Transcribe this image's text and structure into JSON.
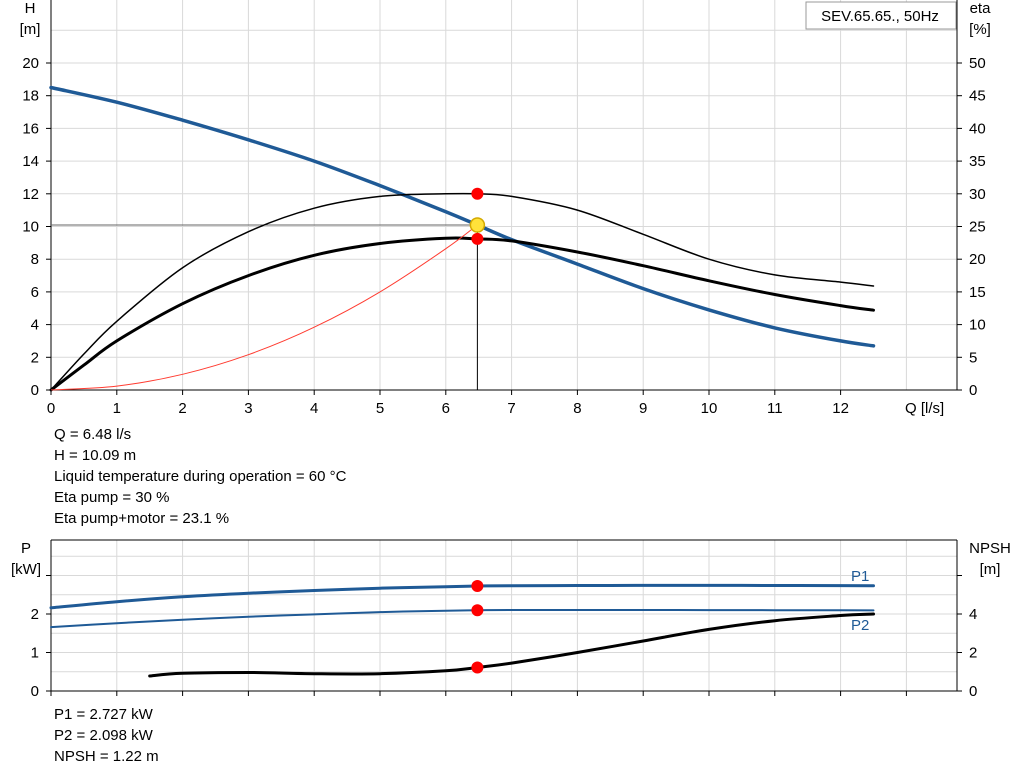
{
  "title_box": "SEV.65.65., 50Hz",
  "chart_data": [
    {
      "type": "line",
      "name": "head-efficiency-curve",
      "xlabel": "Q [l/s]",
      "ylabel_left_1": "H",
      "ylabel_left_2": "[m]",
      "ylabel_right_1": "eta",
      "ylabel_right_2": "[%]",
      "xlim": [
        0,
        13
      ],
      "ylim_left": [
        0,
        20
      ],
      "ylim_right": [
        0,
        50
      ],
      "x_ticks": [
        "0",
        "1",
        "2",
        "3",
        "4",
        "5",
        "6",
        "7",
        "8",
        "9",
        "10",
        "11",
        "12"
      ],
      "y_left_ticks": [
        "0",
        "2",
        "4",
        "6",
        "8",
        "10",
        "12",
        "14",
        "16",
        "18",
        "20"
      ],
      "y_right_ticks": [
        "0",
        "5",
        "10",
        "15",
        "20",
        "25",
        "30",
        "35",
        "40",
        "45",
        "50"
      ],
      "grid": true,
      "series": [
        {
          "id": "H",
          "color": "#1f5a96",
          "axis": "left",
          "x": [
            0,
            1,
            2,
            3,
            4,
            5,
            6,
            6.48,
            7,
            8,
            9,
            10,
            11,
            12,
            12.5
          ],
          "y": [
            18.5,
            17.6,
            16.5,
            15.3,
            14.0,
            12.5,
            10.9,
            10.09,
            9.2,
            7.7,
            6.2,
            4.9,
            3.8,
            3.0,
            2.7
          ]
        },
        {
          "id": "eta-pump",
          "color": "#000000",
          "axis": "right",
          "width": 1.5,
          "x": [
            0,
            0.5,
            1,
            2,
            3,
            4,
            5,
            6,
            6.48,
            7,
            8,
            9,
            10,
            11,
            12,
            12.5
          ],
          "y": [
            0,
            5.5,
            10.5,
            18.7,
            24.2,
            27.8,
            29.6,
            30.0,
            30.0,
            29.6,
            27.5,
            23.8,
            20.0,
            17.6,
            16.5,
            15.9
          ]
        },
        {
          "id": "eta-pump-motor",
          "color": "#000000",
          "axis": "right",
          "width": 3,
          "x": [
            0,
            0.5,
            1,
            2,
            3,
            4,
            5,
            6,
            6.48,
            7,
            8,
            9,
            10,
            11,
            12,
            12.5
          ],
          "y": [
            0,
            3.8,
            7.5,
            13.2,
            17.5,
            20.6,
            22.4,
            23.2,
            23.1,
            22.8,
            21.1,
            19.0,
            16.7,
            14.6,
            12.9,
            12.2
          ]
        },
        {
          "id": "system-curve",
          "color": "#ff3b30",
          "axis": "left",
          "width": 1,
          "x": [
            0,
            1,
            2,
            3,
            4,
            5,
            6,
            6.48
          ],
          "y": [
            0,
            0.24,
            0.96,
            2.16,
            3.84,
            6.0,
            8.64,
            10.09
          ]
        }
      ],
      "markers": [
        {
          "id": "eta-pump-point",
          "x": 6.48,
          "y": 30,
          "axis": "right"
        },
        {
          "id": "eta-total-point",
          "x": 6.48,
          "y": 23.1,
          "axis": "right"
        }
      ],
      "duty_point": {
        "x": 6.48,
        "y": 10.09
      }
    },
    {
      "type": "line",
      "name": "power-npsh-curve",
      "ylabel_left_1": "P",
      "ylabel_left_2": "[kW]",
      "ylabel_right_1": "NPSH",
      "ylabel_right_2": "[m]",
      "xlim": [
        0,
        13
      ],
      "ylim_left": [
        0,
        3
      ],
      "ylim_right": [
        0,
        6
      ],
      "y_left_ticks": [
        "0",
        "1",
        "2"
      ],
      "y_right_ticks": [
        "0",
        "2",
        "4"
      ],
      "grid": true,
      "series": [
        {
          "id": "P1",
          "name": "P1",
          "color": "#1f5a96",
          "axis": "left",
          "width": 3,
          "x": [
            0,
            1,
            2,
            3,
            4,
            5,
            6,
            6.48,
            7,
            8,
            9,
            10,
            11,
            12,
            12.5
          ],
          "y": [
            2.16,
            2.32,
            2.45,
            2.54,
            2.61,
            2.67,
            2.71,
            2.727,
            2.735,
            2.74,
            2.742,
            2.742,
            2.741,
            2.738,
            2.736
          ]
        },
        {
          "id": "P2",
          "name": "P2",
          "color": "#1f5a96",
          "axis": "left",
          "width": 2,
          "x": [
            0,
            1,
            2,
            3,
            4,
            5,
            6,
            6.48,
            7,
            8,
            9,
            10,
            11,
            12,
            12.5
          ],
          "y": [
            1.66,
            1.76,
            1.85,
            1.93,
            1.99,
            2.05,
            2.085,
            2.098,
            2.103,
            2.105,
            2.104,
            2.101,
            2.098,
            2.096,
            2.094
          ]
        },
        {
          "id": "NPSH",
          "color": "#000000",
          "axis": "right",
          "width": 3,
          "x": [
            1.5,
            2,
            3,
            4,
            5,
            6,
            6.48,
            7,
            8,
            9,
            10,
            11,
            12,
            12.5
          ],
          "y": [
            0.78,
            0.92,
            0.96,
            0.9,
            0.9,
            1.05,
            1.22,
            1.45,
            2.0,
            2.6,
            3.2,
            3.65,
            3.92,
            4.0
          ]
        }
      ],
      "markers": [
        {
          "id": "p1-point",
          "x": 6.48,
          "y": 2.727,
          "axis": "left"
        },
        {
          "id": "p2-point",
          "x": 6.48,
          "y": 2.098,
          "axis": "left"
        },
        {
          "id": "npsh-point",
          "x": 6.48,
          "y": 1.22,
          "axis": "right"
        }
      ]
    }
  ],
  "info_top": [
    "Q = 6.48 l/s",
    "H = 10.09 m",
    "Liquid temperature during operation = 60 °C",
    "Eta pump = 30 %",
    "Eta pump+motor = 23.1 %"
  ],
  "info_bottom": [
    "P1 = 2.727 kW",
    "P2 = 2.098 kW",
    "NPSH = 1.22 m"
  ]
}
